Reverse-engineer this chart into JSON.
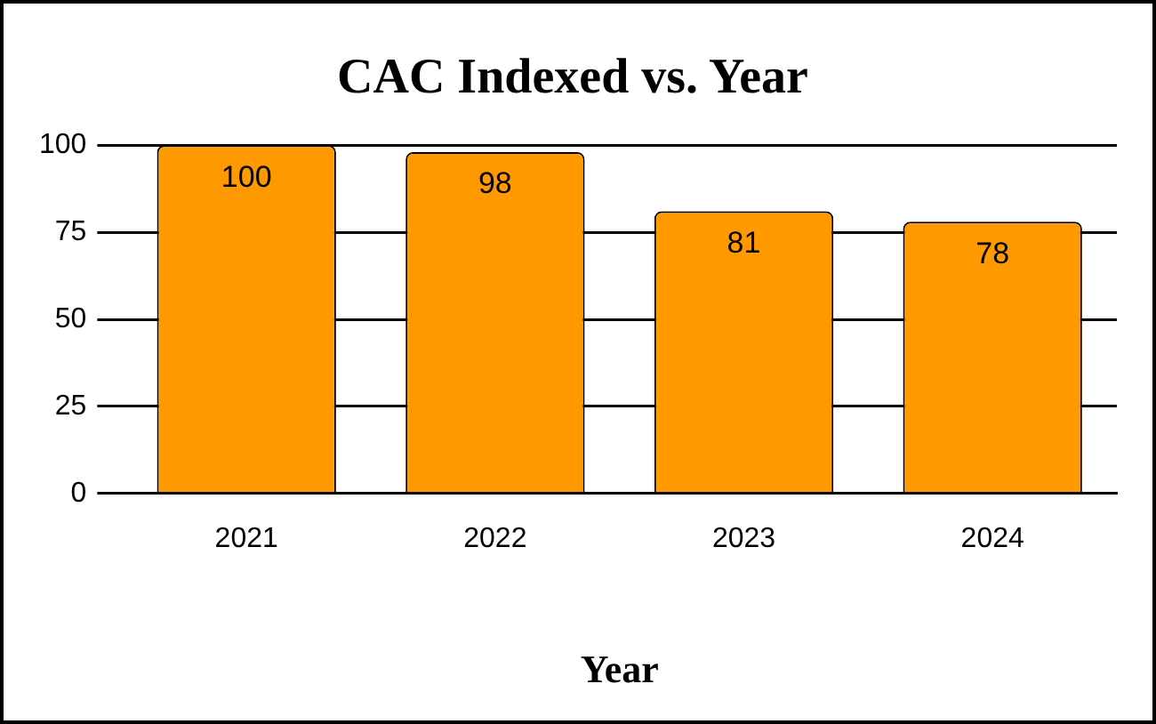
{
  "chart_data": {
    "type": "bar",
    "title": "CAC Indexed vs. Year",
    "xlabel": "Year",
    "categories": [
      "2021",
      "2022",
      "2023",
      "2024"
    ],
    "values": [
      100,
      98,
      81,
      78
    ],
    "color": "#ff9900",
    "ylim": [
      0,
      100
    ],
    "yticks": [
      0,
      25,
      50,
      75,
      100
    ],
    "grid": "y",
    "data_labels": true
  }
}
